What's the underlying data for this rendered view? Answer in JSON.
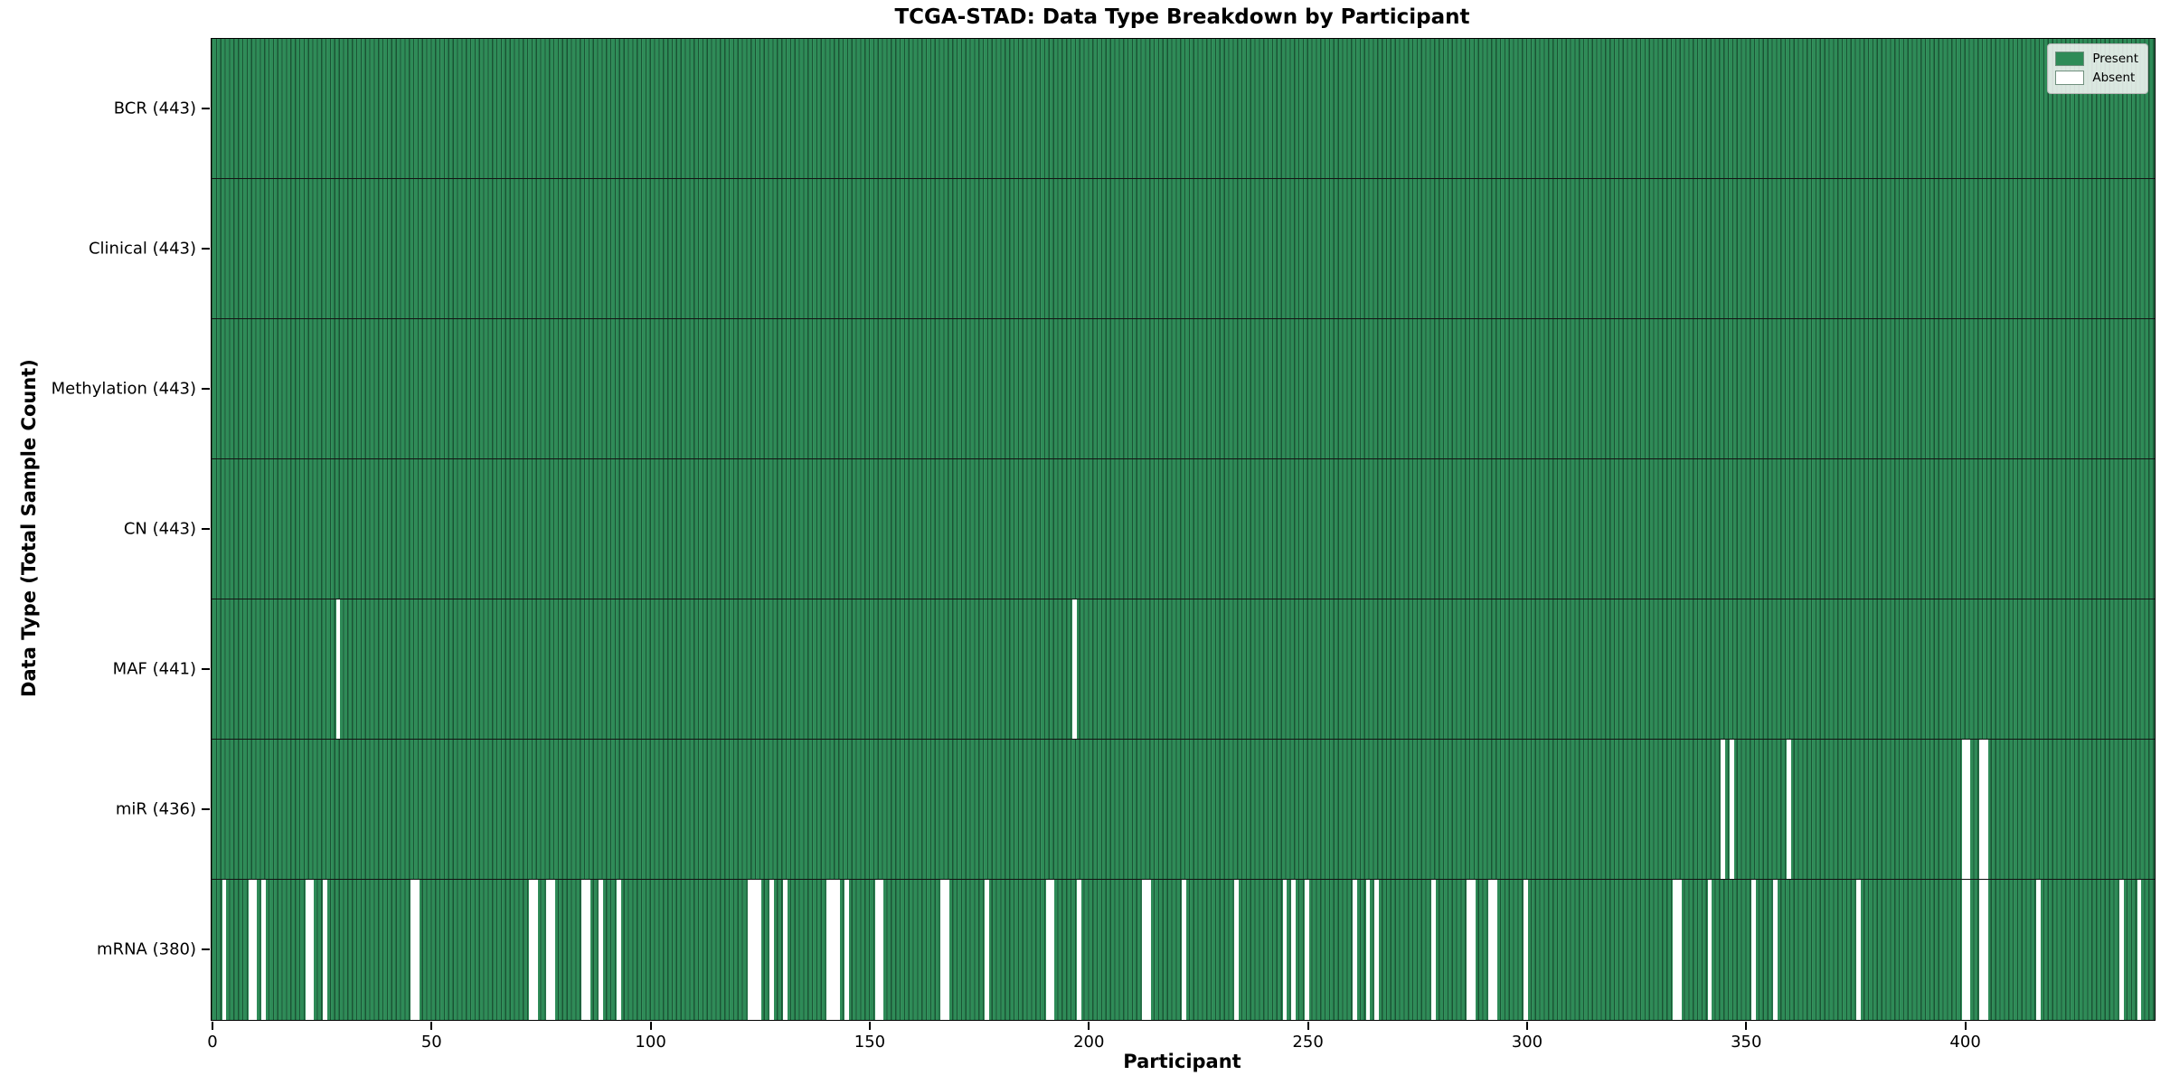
{
  "chart_data": {
    "type": "heatmap",
    "title": "TCGA-STAD: Data Type Breakdown by Participant",
    "xlabel": "Participant",
    "ylabel": "Data Type (Total Sample Count)",
    "n_participants": 443,
    "x_ticks": [
      0,
      50,
      100,
      150,
      200,
      250,
      300,
      350,
      400
    ],
    "x_range": [
      0,
      443
    ],
    "grid": false,
    "legend_position": "upper right",
    "legend": [
      {
        "label": "Present",
        "color": "#2e8b57"
      },
      {
        "label": "Absent",
        "color": "#ffffff"
      }
    ],
    "colors": {
      "present": "#2e8b57",
      "absent": "#ffffff",
      "bar_edge": "rgba(10,38,24,0.55)",
      "axis": "#000000"
    },
    "rows": [
      {
        "label": "BCR",
        "count": 443,
        "absent": []
      },
      {
        "label": "Clinical",
        "count": 443,
        "absent": []
      },
      {
        "label": "Methylation",
        "count": 443,
        "absent": []
      },
      {
        "label": "CN",
        "count": 443,
        "absent": []
      },
      {
        "label": "MAF",
        "count": 441,
        "absent": [
          28,
          196
        ]
      },
      {
        "label": "miR",
        "count": 436,
        "absent": [
          344,
          346,
          359,
          399,
          400,
          403,
          404
        ]
      },
      {
        "label": "mRNA",
        "count": 380,
        "absent": [
          2,
          8,
          9,
          11,
          21,
          22,
          25,
          45,
          46,
          72,
          73,
          76,
          77,
          84,
          85,
          88,
          92,
          122,
          123,
          124,
          127,
          130,
          140,
          141,
          142,
          144,
          151,
          152,
          166,
          167,
          176,
          190,
          191,
          197,
          212,
          213,
          221,
          233,
          244,
          246,
          249,
          260,
          263,
          265,
          278,
          286,
          287,
          291,
          292,
          299,
          333,
          334,
          341,
          351,
          356,
          375,
          399,
          400,
          403,
          404,
          416,
          435,
          439
        ]
      }
    ]
  }
}
